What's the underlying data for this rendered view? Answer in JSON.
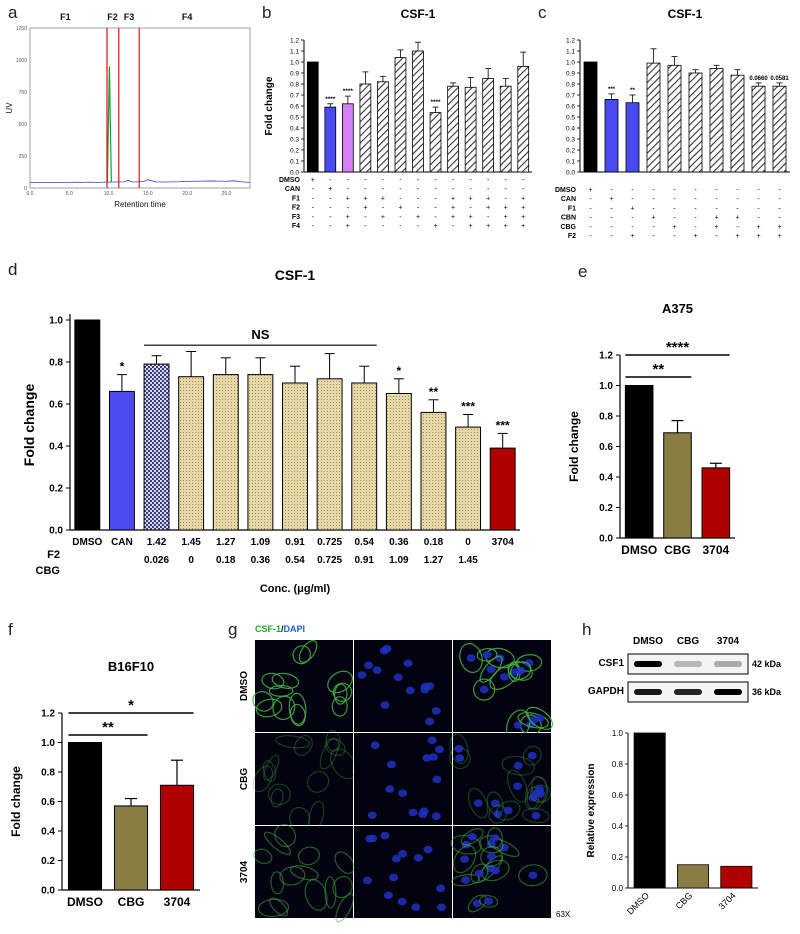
{
  "panel_labels": [
    "a",
    "b",
    "c",
    "d",
    "e",
    "f",
    "g",
    "h"
  ],
  "chart_data": [
    {
      "id": "a",
      "type": "line",
      "xlabel": "Retention time",
      "ylabel": "UV",
      "fractions": [
        "F1",
        "F2",
        "F3",
        "F4"
      ],
      "x": [
        0,
        2,
        4,
        5,
        6,
        6.5,
        7,
        7.5,
        8,
        8.5,
        9,
        10,
        11,
        12,
        12.5,
        13,
        13.5,
        14,
        14.5,
        15,
        16,
        17,
        17.5,
        18,
        19,
        20,
        21,
        22,
        23,
        24,
        25,
        26,
        27,
        28
      ],
      "y": [
        42,
        43,
        43,
        44,
        45,
        44,
        45,
        46,
        45,
        44,
        45,
        46,
        47,
        48,
        60,
        47,
        48,
        50,
        52,
        65,
        48,
        47,
        47,
        48,
        49,
        52,
        53,
        54,
        55,
        54,
        53,
        56,
        48,
        44
      ],
      "peak": {
        "x": 10.1,
        "y": 950
      },
      "ylim": [
        0,
        1250
      ],
      "xlim": [
        0,
        28
      ]
    },
    {
      "id": "b",
      "type": "bar",
      "title": "CSF-1",
      "ylabel": "Fold change",
      "ylim": [
        0,
        1.2
      ],
      "yticks": [
        "0.0",
        "0.1",
        "0.2",
        "0.3",
        "0.4",
        "0.5",
        "0.6",
        "0.7",
        "0.8",
        "0.9",
        "1.0",
        "1.1",
        "1.2"
      ],
      "values": [
        1.0,
        0.59,
        0.62,
        0.8,
        0.82,
        1.04,
        1.1,
        0.54,
        0.78,
        0.77,
        0.85,
        0.78,
        0.96
      ],
      "errors": [
        0,
        0.03,
        0.07,
        0.11,
        0.05,
        0.07,
        0.08,
        0.05,
        0.03,
        0.09,
        0.09,
        0.07,
        0.13
      ],
      "styles": [
        "black",
        "blue",
        "violet",
        "hatch",
        "hatch",
        "hatch",
        "hatch",
        "hatch",
        "hatch",
        "hatch",
        "hatch",
        "hatch",
        "hatch"
      ],
      "sig": [
        "",
        "****",
        "****",
        "",
        "",
        "",
        "",
        "****",
        "",
        "",
        "",
        "",
        ""
      ],
      "rows": [
        {
          "name": "DMSO",
          "marks": [
            "+",
            "-",
            "-",
            "-",
            "-",
            "-",
            "-",
            "-",
            "-",
            "-",
            "-",
            "-",
            "-"
          ]
        },
        {
          "name": "CAN",
          "marks": [
            "-",
            "+",
            "-",
            "-",
            "-",
            "-",
            "-",
            "-",
            "-",
            "-",
            "-",
            "-",
            "-"
          ]
        },
        {
          "name": "F1",
          "marks": [
            "-",
            "-",
            "+",
            "+",
            "+",
            "-",
            "-",
            "-",
            "+",
            "+",
            "+",
            "-",
            "+"
          ]
        },
        {
          "name": "F2",
          "marks": [
            "-",
            "-",
            "-",
            "+",
            "-",
            "+",
            "-",
            "-",
            "+",
            "-",
            "+",
            "+",
            "+"
          ]
        },
        {
          "name": "F3",
          "marks": [
            "-",
            "-",
            "+",
            "-",
            "+",
            "-",
            "+",
            "-",
            "+",
            "+",
            "-",
            "+",
            "+"
          ]
        },
        {
          "name": "F4",
          "marks": [
            "-",
            "-",
            "+",
            "-",
            "-",
            "-",
            "-",
            "+",
            "-",
            "+",
            "+",
            "+",
            "+"
          ]
        }
      ]
    },
    {
      "id": "c",
      "type": "bar",
      "title": "CSF-1",
      "ylim": [
        0,
        1.2
      ],
      "yticks": [
        "0.0",
        "0.1",
        "0.2",
        "0.3",
        "0.4",
        "0.5",
        "0.6",
        "0.7",
        "0.8",
        "0.9",
        "1.0",
        "1.1",
        "1.2"
      ],
      "values": [
        1.0,
        0.66,
        0.63,
        0.99,
        0.97,
        0.9,
        0.94,
        0.88,
        0.78,
        0.78
      ],
      "errors": [
        0,
        0.05,
        0.07,
        0.13,
        0.08,
        0.03,
        0.03,
        0.05,
        0.03,
        0.03
      ],
      "styles": [
        "black",
        "blue",
        "blue",
        "hatch",
        "hatch",
        "hatch",
        "hatch",
        "hatch",
        "hatch",
        "hatch"
      ],
      "sig": [
        "",
        "***",
        "**",
        "",
        "",
        "",
        "",
        "",
        "0.0660",
        "0.0581"
      ],
      "rows": [
        {
          "name": "DMSO",
          "marks": [
            "+",
            "-",
            "-",
            "-",
            "-",
            "-",
            "-",
            "-",
            "-",
            "-"
          ]
        },
        {
          "name": "CAN",
          "marks": [
            "-",
            "+",
            "-",
            "-",
            "-",
            "-",
            "-",
            "-",
            "-",
            "-"
          ]
        },
        {
          "name": "F1",
          "marks": [
            "-",
            "-",
            "+",
            "-",
            "-",
            "-",
            "-",
            "-",
            "-",
            "-"
          ]
        },
        {
          "name": "CBN",
          "marks": [
            "-",
            "-",
            "-",
            "+",
            "-",
            "-",
            "+",
            "+",
            "-",
            "-"
          ]
        },
        {
          "name": "CBG",
          "marks": [
            "-",
            "-",
            "-",
            "-",
            "+",
            "-",
            "+",
            "-",
            "+",
            "+"
          ]
        },
        {
          "name": "F2",
          "marks": [
            "-",
            "-",
            "+",
            "-",
            "-",
            "+",
            "-",
            "+",
            "+",
            "+"
          ]
        }
      ]
    },
    {
      "id": "d",
      "type": "bar",
      "title": "CSF-1",
      "ylabel": "Fold change",
      "xlabel": "Conc. (μg/ml)",
      "ylim": [
        0,
        1.0
      ],
      "yticks": [
        "0.0",
        "0.2",
        "0.4",
        "0.6",
        "0.8",
        "1.0"
      ],
      "categories": [
        "DMSO",
        "CAN",
        "1.42",
        "1.45",
        "1.27",
        "1.09",
        "0.91",
        "0.725",
        "0.54",
        "0.36",
        "0.18",
        "0",
        "3704"
      ],
      "values": [
        1.0,
        0.66,
        0.79,
        0.73,
        0.74,
        0.74,
        0.7,
        0.72,
        0.7,
        0.65,
        0.56,
        0.49,
        0.39
      ],
      "errors": [
        0,
        0.08,
        0.04,
        0.12,
        0.08,
        0.08,
        0.08,
        0.12,
        0.08,
        0.07,
        0.06,
        0.06,
        0.07
      ],
      "styles": [
        "black",
        "blue",
        "check",
        "tan",
        "tan",
        "tan",
        "tan",
        "tan",
        "tan",
        "tan",
        "tan",
        "tan",
        "red"
      ],
      "sig": [
        "",
        "*",
        "",
        "",
        "",
        "",
        "",
        "",
        "",
        "*",
        "**",
        "***",
        "***"
      ],
      "bracket_label": "NS",
      "row_f2_name": "F2",
      "row_cbg_name": "CBG",
      "row_cbg": [
        "",
        "",
        "0.026",
        "0",
        "0.18",
        "0.36",
        "0.54",
        "0.725",
        "0.91",
        "1.09",
        "1.27",
        "1.45",
        ""
      ]
    },
    {
      "id": "e",
      "type": "bar",
      "title": "A375",
      "ylabel": "Fold change",
      "ylim": [
        0,
        1.2
      ],
      "yticks": [
        "0.0",
        "0.2",
        "0.4",
        "0.6",
        "0.8",
        "1.0",
        "1.2"
      ],
      "categories": [
        "DMSO",
        "CBG",
        "3704"
      ],
      "values": [
        1.0,
        0.69,
        0.46
      ],
      "errors": [
        0,
        0.08,
        0.03
      ],
      "colors": [
        "#000000",
        "#8a7d43",
        "#b00000"
      ],
      "brackets": [
        {
          "from": 0,
          "to": 1,
          "label": "**"
        },
        {
          "from": 0,
          "to": 2,
          "label": "****"
        }
      ]
    },
    {
      "id": "f",
      "type": "bar",
      "title": "B16F10",
      "ylabel": "Fold change",
      "ylim": [
        0,
        1.2
      ],
      "yticks": [
        "0.0",
        "0.2",
        "0.4",
        "0.6",
        "0.8",
        "1.0",
        "1.2"
      ],
      "categories": [
        "DMSO",
        "CBG",
        "3704"
      ],
      "values": [
        1.0,
        0.57,
        0.71
      ],
      "errors": [
        0,
        0.05,
        0.17
      ],
      "colors": [
        "#000000",
        "#8a7d43",
        "#b00000"
      ],
      "brackets": [
        {
          "from": 0,
          "to": 1,
          "label": "**"
        },
        {
          "from": 0,
          "to": 2,
          "label": "*"
        }
      ]
    },
    {
      "id": "h",
      "type": "bar",
      "ylabel": "Relative expression",
      "ylim": [
        0,
        1.0
      ],
      "yticks": [
        "0.0",
        "0.2",
        "0.4",
        "0.6",
        "0.8",
        "1.0"
      ],
      "categories": [
        "DMSO",
        "CBG",
        "3704"
      ],
      "values": [
        1.0,
        0.15,
        0.14
      ],
      "colors": [
        "#000000",
        "#8a7d43",
        "#b00000"
      ],
      "blot": {
        "lanes": [
          "DMSO",
          "CBG",
          "3704"
        ],
        "bands": [
          {
            "name": "CSF1",
            "size": "42 kDa",
            "intensity": [
              1.0,
              0.25,
              0.3
            ]
          },
          {
            "name": "GAPDH",
            "size": "36 kDa",
            "intensity": [
              0.9,
              0.85,
              1.0
            ]
          }
        ]
      }
    }
  ],
  "microscopy": {
    "legend_green": "CSF-1",
    "legend_sep": "/",
    "legend_blue": "DAPI",
    "rows": [
      "DMSO",
      "CBG",
      "3704"
    ],
    "magnification": "63X"
  }
}
